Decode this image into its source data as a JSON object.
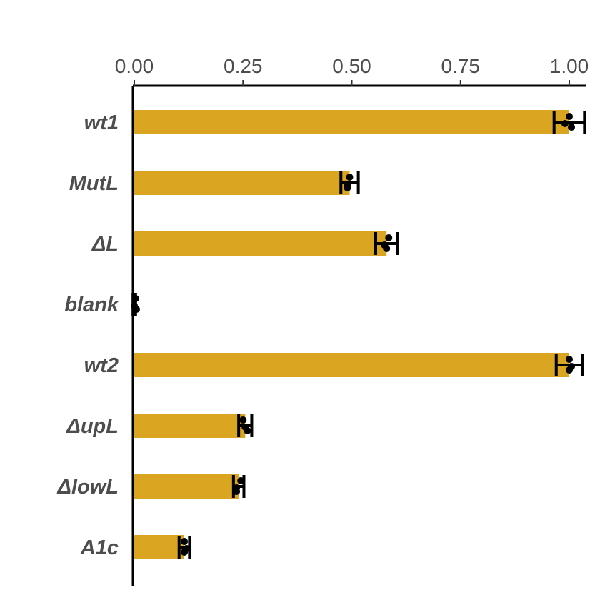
{
  "chart_data": {
    "type": "bar",
    "orientation": "horizontal",
    "axis_position": "top",
    "xlim": [
      0,
      1.0
    ],
    "ylim": null,
    "xticks": [
      0.0,
      0.25,
      0.5,
      0.75,
      1.0
    ],
    "xtick_labels": [
      "0.00",
      "0.25",
      "0.50",
      "0.75",
      "1.00"
    ],
    "grid": false,
    "legend": "none",
    "title": "",
    "xlabel": "",
    "ylabel": "",
    "bar_color": "#DAA520",
    "point_color": "#000000",
    "categories": [
      "wt1",
      "MutL",
      "ΔL",
      "blank",
      "wt2",
      "ΔupL",
      "ΔlowL",
      "A1c"
    ],
    "values": [
      1.0,
      0.495,
      0.58,
      0.0,
      1.0,
      0.255,
      0.24,
      0.115
    ],
    "error": [
      0.035,
      0.02,
      0.025,
      0.003,
      0.03,
      0.015,
      0.012,
      0.012
    ],
    "points": [
      [
        1.0,
        0.99,
        1.005
      ],
      [
        0.495,
        0.49,
        0.49
      ],
      [
        0.585,
        0.575,
        0.58
      ],
      [
        0.003,
        0.0,
        0.005
      ],
      [
        1.0,
        1.005,
        1.0
      ],
      [
        0.25,
        0.255,
        0.26
      ],
      [
        0.245,
        0.235,
        0.235
      ],
      [
        0.115,
        0.12,
        0.115
      ]
    ]
  }
}
